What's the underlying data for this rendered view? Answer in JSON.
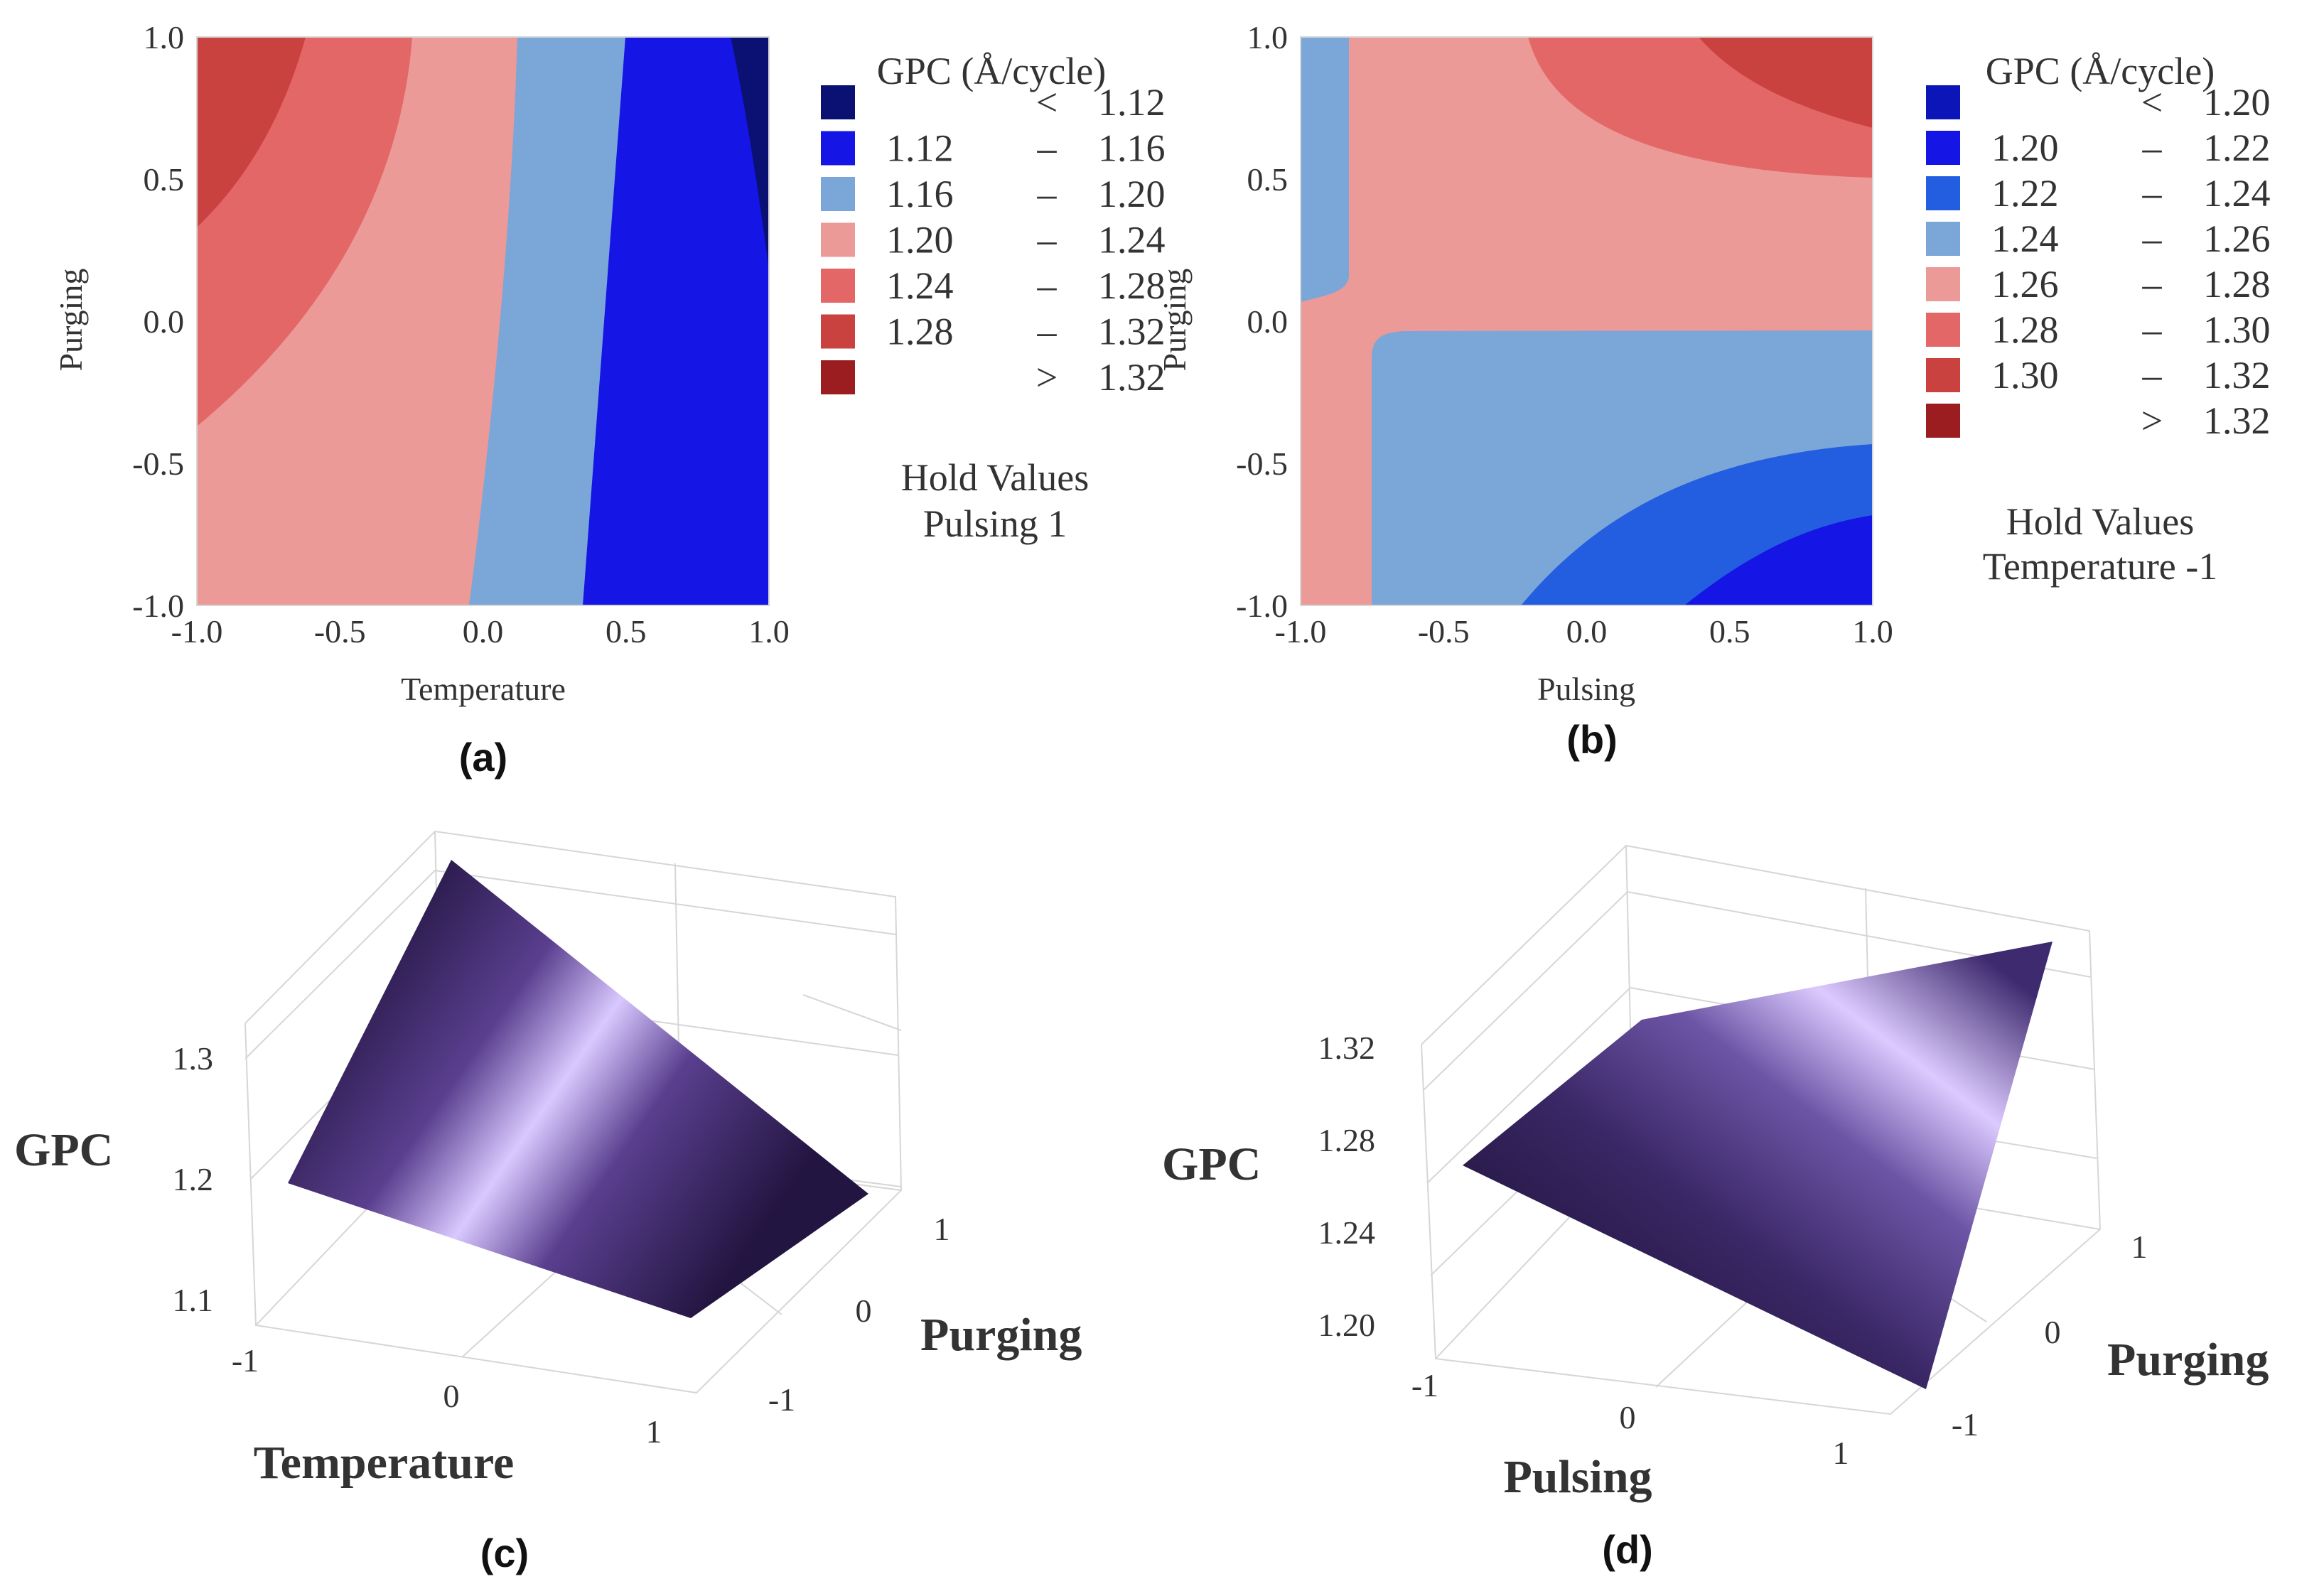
{
  "chart_data": [
    {
      "panel": "a",
      "type": "contour",
      "caption": "(a)",
      "xlabel": "Temperature",
      "ylabel": "Purging",
      "xlim": [
        -1,
        1
      ],
      "ylim": [
        -1,
        1
      ],
      "x_ticks": [
        "-1.0",
        "-0.5",
        "0.0",
        "0.5",
        "1.0"
      ],
      "y_ticks": [
        "1.0",
        "0.5",
        "0.0",
        "-0.5",
        "-1.0"
      ],
      "legend_title": "GPC (Å/cycle)",
      "legend": [
        {
          "lo": "",
          "sep": "<",
          "hi": "1.12",
          "color": "#0a1172"
        },
        {
          "lo": "1.12",
          "sep": "–",
          "hi": "1.16",
          "color": "#1515e6"
        },
        {
          "lo": "1.16",
          "sep": "–",
          "hi": "1.20",
          "color": "#7aa6d8"
        },
        {
          "lo": "1.20",
          "sep": "–",
          "hi": "1.24",
          "color": "#ec9a98"
        },
        {
          "lo": "1.24",
          "sep": "–",
          "hi": "1.28",
          "color": "#e46767"
        },
        {
          "lo": "1.28",
          "sep": "–",
          "hi": "1.32",
          "color": "#c9423f"
        },
        {
          "lo": "",
          "sep": ">",
          "hi": "1.32",
          "color": "#9b1d20"
        }
      ],
      "hold_title": "Hold Values",
      "hold_value": "Pulsing  1"
    },
    {
      "panel": "b",
      "type": "contour",
      "caption": "(b)",
      "xlabel": "Pulsing",
      "ylabel": "Purging",
      "xlim": [
        -1,
        1
      ],
      "ylim": [
        -1,
        1
      ],
      "x_ticks": [
        "-1.0",
        "-0.5",
        "0.0",
        "0.5",
        "1.0"
      ],
      "y_ticks": [
        "1.0",
        "0.5",
        "0.0",
        "-0.5",
        "-1.0"
      ],
      "legend_title": "GPC (Å/cycle)",
      "legend": [
        {
          "lo": "",
          "sep": "<",
          "hi": "1.20",
          "color": "#0b15b8"
        },
        {
          "lo": "1.20",
          "sep": "–",
          "hi": "1.22",
          "color": "#1515e6"
        },
        {
          "lo": "1.22",
          "sep": "–",
          "hi": "1.24",
          "color": "#245ee0"
        },
        {
          "lo": "1.24",
          "sep": "–",
          "hi": "1.26",
          "color": "#7aa6d8"
        },
        {
          "lo": "1.26",
          "sep": "–",
          "hi": "1.28",
          "color": "#ec9a98"
        },
        {
          "lo": "1.28",
          "sep": "–",
          "hi": "1.30",
          "color": "#e46767"
        },
        {
          "lo": "1.30",
          "sep": "–",
          "hi": "1.32",
          "color": "#c9423f"
        },
        {
          "lo": "",
          "sep": ">",
          "hi": "1.32",
          "color": "#9b1d20"
        }
      ],
      "hold_title": "Hold Values",
      "hold_value": "Temperature  -1"
    },
    {
      "panel": "c",
      "type": "surface",
      "caption": "(c)",
      "xlabel": "Temperature",
      "ylabel": "Purging",
      "zlabel": "GPC",
      "x_ticks": [
        "-1",
        "0",
        "1"
      ],
      "y_ticks": [
        "1",
        "0",
        "-1"
      ],
      "z_ticks": [
        "1.3",
        "1.2",
        "1.1"
      ],
      "colors": {
        "dark": "#231541",
        "mid": "#5a3f8f",
        "light": "#d9c8ff"
      }
    },
    {
      "panel": "d",
      "type": "surface",
      "caption": "(d)",
      "xlabel": "Pulsing",
      "ylabel": "Purging",
      "zlabel": "GPC",
      "x_ticks": [
        "-1",
        "0",
        "1"
      ],
      "y_ticks": [
        "1",
        "0",
        "-1"
      ],
      "z_ticks": [
        "1.32",
        "1.28",
        "1.24",
        "1.20"
      ],
      "colors": {
        "dark": "#1e1238",
        "mid": "#4e3785",
        "light": "#dccaff"
      }
    }
  ]
}
